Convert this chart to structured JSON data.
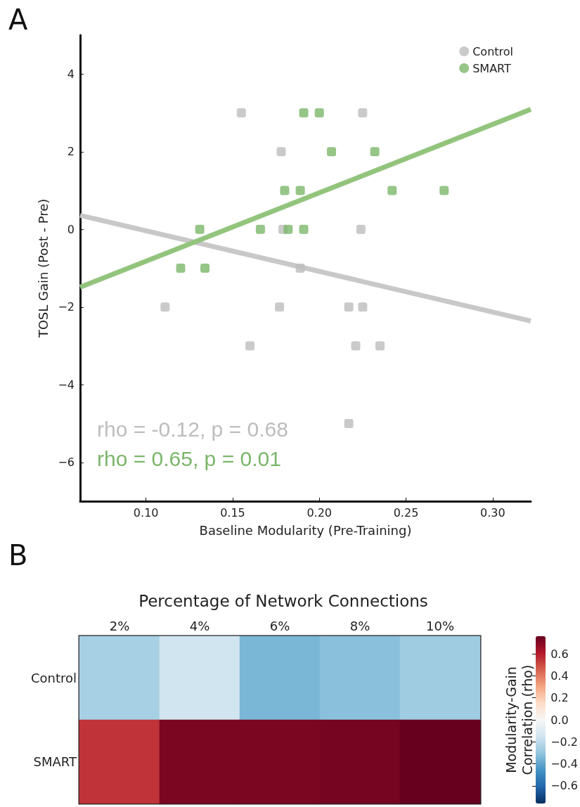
{
  "chart_data": [
    {
      "type": "scatter",
      "xlabel": "Baseline Modularity (Pre-Training)",
      "ylabel": "TOSL Gain (Post - Pre)",
      "annotations": [
        "A",
        "rho = -0.12, p = 0.68",
        "rho = 0.65, p = 0.01"
      ],
      "xlim": [
        0.062,
        0.322
      ],
      "xticks": [
        {
          "value": 0.1,
          "label": "0.10"
        },
        {
          "value": 0.15,
          "label": "0.15"
        },
        {
          "value": 0.2,
          "label": "0.20"
        },
        {
          "value": 0.25,
          "label": "0.25"
        },
        {
          "value": 0.3,
          "label": "0.30"
        }
      ],
      "ylim": [
        -7,
        5
      ],
      "yticks": [
        {
          "value": -6,
          "label": "−6"
        },
        {
          "value": -4,
          "label": "−4"
        },
        {
          "value": -2,
          "label": "−2"
        },
        0,
        2,
        4
      ],
      "grid": false,
      "legend": "top right",
      "marker": "square",
      "series": [
        {
          "name": "Control",
          "color": "#bdbdbd",
          "x": [
            0.155,
            0.225,
            0.178,
            0.179,
            0.224,
            0.189,
            0.111,
            0.177,
            0.217,
            0.225,
            0.16,
            0.221,
            0.235,
            0.217
          ],
          "values": [
            3,
            3,
            2,
            0,
            0,
            -1,
            -2,
            -2,
            -2,
            -2,
            -3,
            -3,
            -3,
            -5
          ]
        },
        {
          "name": "SMART",
          "color": "#7cb66a",
          "x": [
            0.191,
            0.2,
            0.207,
            0.232,
            0.18,
            0.189,
            0.242,
            0.272,
            0.131,
            0.166,
            0.182,
            0.191,
            0.12,
            0.134
          ],
          "values": [
            3,
            3,
            2,
            2,
            1,
            1,
            1,
            1,
            0,
            0,
            0,
            0,
            -1,
            -1
          ]
        },
        {
          "type": "line",
          "marker": "none",
          "color": "#c8c8c8",
          "x": [
            0.062,
            0.322
          ],
          "values": [
            0.36,
            -2.36
          ]
        },
        {
          "type": "line",
          "marker": "none",
          "color": "#93c47d",
          "x": [
            0.062,
            0.322
          ],
          "values": [
            -1.49,
            3.09
          ]
        }
      ]
    },
    {
      "type": "heatmap",
      "title": "Percentage of Network Connections",
      "annotations": [
        "B"
      ],
      "categories": [
        "2%",
        "4%",
        "6%",
        "8%",
        "10%"
      ],
      "y_categories": [
        "Control",
        "SMART"
      ],
      "cells": [
        [
          -0.25,
          -0.15,
          -0.35,
          -0.32,
          -0.27
        ],
        [
          0.55,
          0.72,
          0.72,
          0.73,
          0.76
        ]
      ],
      "clabel": "Modularity-Gain\nCorrelation (rho)",
      "clim": [
        -0.76,
        0.76
      ],
      "cticks": [
        {
          "value": 0.6,
          "label": "0.6"
        },
        {
          "value": 0.4,
          "label": "0.4"
        },
        {
          "value": 0.2,
          "label": "0.2"
        },
        {
          "value": 0,
          "label": "0.0"
        },
        {
          "value": -0.2,
          "label": "−0.2"
        },
        {
          "value": -0.4,
          "label": "−0.4"
        },
        {
          "value": -0.6,
          "label": "−0.6"
        }
      ]
    }
  ]
}
